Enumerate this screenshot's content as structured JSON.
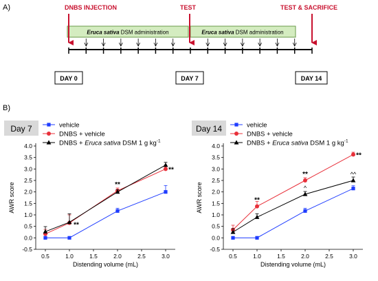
{
  "colors": {
    "red": "#c8102e",
    "blue": "#1f3dff",
    "green_box_fill": "#d4ecc0",
    "green_box_stroke": "#6a9a4a",
    "badge_fill": "#d9d9d9",
    "black": "#000000"
  },
  "panel_a": {
    "panel_label": "A)",
    "events": {
      "injection": "DNBS INJECTION",
      "test": "TEST",
      "sacrifice": "TEST & SACRIFICE"
    },
    "admin_box_1": {
      "italic": "Eruca sativa",
      "rest": " DSM administration"
    },
    "admin_box_2": {
      "italic": "Eruca sativa",
      "rest": " DSM administration"
    },
    "day_labels": [
      "DAY 0",
      "DAY 7",
      "DAY 14"
    ]
  },
  "panel_b": {
    "panel_label": "B)",
    "legend": {
      "vehicle": "vehicle",
      "dnbs_vehicle": "DNBS + vehicle",
      "dnbs_ers_prefix": "DNBS + ",
      "dnbs_ers_italic": "Eruca sativa",
      "dnbs_ers_suffix": " DSM 1 g kg",
      "dnbs_ers_sup": "-1"
    }
  },
  "chart_data": [
    {
      "type": "line",
      "title": "Day 7",
      "xlabel": "Distending volume (mL)",
      "ylabel": "AWR score",
      "xlim": [
        0.3,
        3.2
      ],
      "ylim": [
        -0.5,
        4.0
      ],
      "x_ticks": [
        "0.5",
        "1.0",
        "1.5",
        "2.0",
        "2.5",
        "3.0"
      ],
      "y_ticks": [
        "-0.5",
        "0.0",
        "0.5",
        "1.0",
        "1.5",
        "2.0",
        "2.5",
        "3.0",
        "3.5",
        "4.0"
      ],
      "x": [
        0.5,
        1.0,
        2.0,
        3.0
      ],
      "series": [
        {
          "name": "vehicle",
          "color": "#1f3dff",
          "marker": "square",
          "values": [
            0.0,
            0.0,
            1.17,
            2.0
          ],
          "errors": [
            0.0,
            0.0,
            0.12,
            0.28
          ]
        },
        {
          "name": "DNBS + vehicle",
          "color": "#e8303a",
          "marker": "circle",
          "values": [
            0.17,
            0.65,
            2.05,
            3.0
          ],
          "errors": [
            0.2,
            0.35,
            0.12,
            0.1
          ]
        },
        {
          "name": "DNBS + Eruca sativa DSM 1 g kg-1",
          "color": "#000000",
          "marker": "triangle",
          "values": [
            0.27,
            0.68,
            2.0,
            3.17
          ],
          "errors": [
            0.22,
            0.37,
            0.1,
            0.12
          ]
        }
      ],
      "annotations": [
        {
          "x": 1.0,
          "y": 0.65,
          "text": "**"
        },
        {
          "x": 2.0,
          "y": 2.05,
          "text": "**"
        },
        {
          "x": 3.0,
          "y": 3.0,
          "text": "**"
        }
      ]
    },
    {
      "type": "line",
      "title": "Day 14",
      "xlabel": "Distending volume (mL)",
      "ylabel": "AWR score",
      "xlim": [
        0.3,
        3.2
      ],
      "ylim": [
        -0.5,
        4.0
      ],
      "x_ticks": [
        "0.5",
        "1.0",
        "1.5",
        "2.0",
        "2.5",
        "3.0"
      ],
      "y_ticks": [
        "-0.5",
        "0.0",
        "0.5",
        "1.0",
        "1.5",
        "2.0",
        "2.5",
        "3.0",
        "3.5",
        "4.0"
      ],
      "x": [
        0.5,
        1.0,
        2.0,
        3.0
      ],
      "series": [
        {
          "name": "vehicle",
          "color": "#1f3dff",
          "marker": "square",
          "values": [
            0.0,
            0.0,
            1.17,
            2.15
          ],
          "errors": [
            0.0,
            0.0,
            0.12,
            0.12
          ]
        },
        {
          "name": "DNBS + vehicle",
          "color": "#e8303a",
          "marker": "circle",
          "values": [
            0.35,
            1.37,
            2.5,
            3.63
          ],
          "errors": [
            0.2,
            0.22,
            0.12,
            0.1
          ]
        },
        {
          "name": "DNBS + Eruca sativa DSM 1 g kg-1",
          "color": "#000000",
          "marker": "triangle",
          "values": [
            0.25,
            0.9,
            1.9,
            2.5
          ],
          "errors": [
            0.15,
            0.15,
            0.12,
            0.15
          ]
        }
      ],
      "annotations": [
        {
          "x": 1.0,
          "y": 1.37,
          "text": "**"
        },
        {
          "x": 2.0,
          "y": 2.5,
          "text": "**"
        },
        {
          "x": 3.0,
          "y": 3.63,
          "text": "**"
        },
        {
          "x": 2.0,
          "y": 1.9,
          "text": "^"
        },
        {
          "x": 3.0,
          "y": 2.5,
          "text": "^^"
        }
      ]
    }
  ]
}
